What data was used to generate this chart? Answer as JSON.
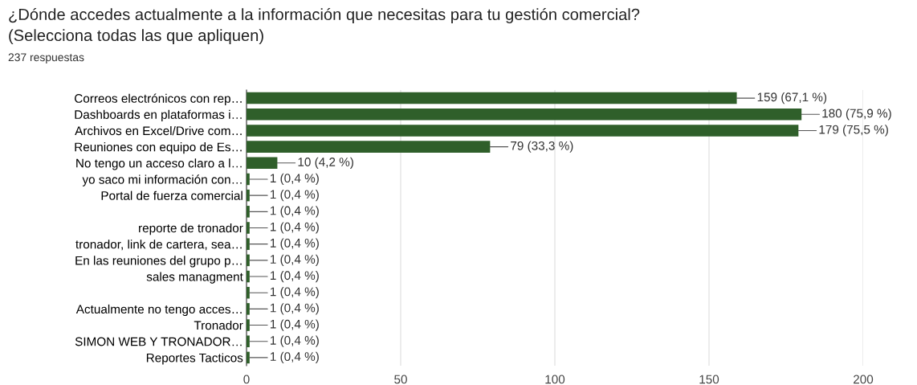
{
  "chart_data": {
    "type": "bar",
    "orientation": "horizontal",
    "title": "¿Dónde accedes actualmente a la información que necesitas para tu gestión comercial?\n(Selecciona todas las que apliquen)",
    "subtitle": "237 respuestas",
    "categories": [
      "Correos electrónicos con rep…",
      "Dashboards en plataformas i…",
      "Archivos en Excel/Drive com…",
      "Reuniones con equipo de Es…",
      "No tengo un acceso claro a l…",
      "yo saco mi información con…",
      "Portal de fuerza comercial",
      null,
      "reporte de tronador",
      "tronador, link de cartera, sea…",
      "En las reuniones del grupo p…",
      "sales managment",
      null,
      "Actualmente no tengo acces…",
      "Tronador",
      "SIMON WEB Y TRONADOR…",
      "Reportes Tacticos"
    ],
    "values": [
      159,
      180,
      179,
      79,
      10,
      1,
      1,
      1,
      1,
      1,
      1,
      1,
      1,
      1,
      1,
      1,
      1
    ],
    "value_labels": [
      "159 (67,1 %)",
      "180 (75,9 %)",
      "179 (75,5 %)",
      "79 (33,3 %)",
      "10 (4,2 %)",
      "1 (0,4 %)",
      "1 (0,4 %)",
      "1 (0,4 %)",
      "1 (0,4 %)",
      "1 (0,4 %)",
      "1 (0,4 %)",
      "1 (0,4 %)",
      "1 (0,4 %)",
      "1 (0,4 %)",
      "1 (0,4 %)",
      "1 (0,4 %)",
      "1 (0,4 %)"
    ],
    "color": "#2f5f2a",
    "xlim": [
      0,
      200
    ],
    "xticks": [
      0,
      50,
      100,
      150,
      200
    ],
    "grid": "x",
    "legend": false
  }
}
